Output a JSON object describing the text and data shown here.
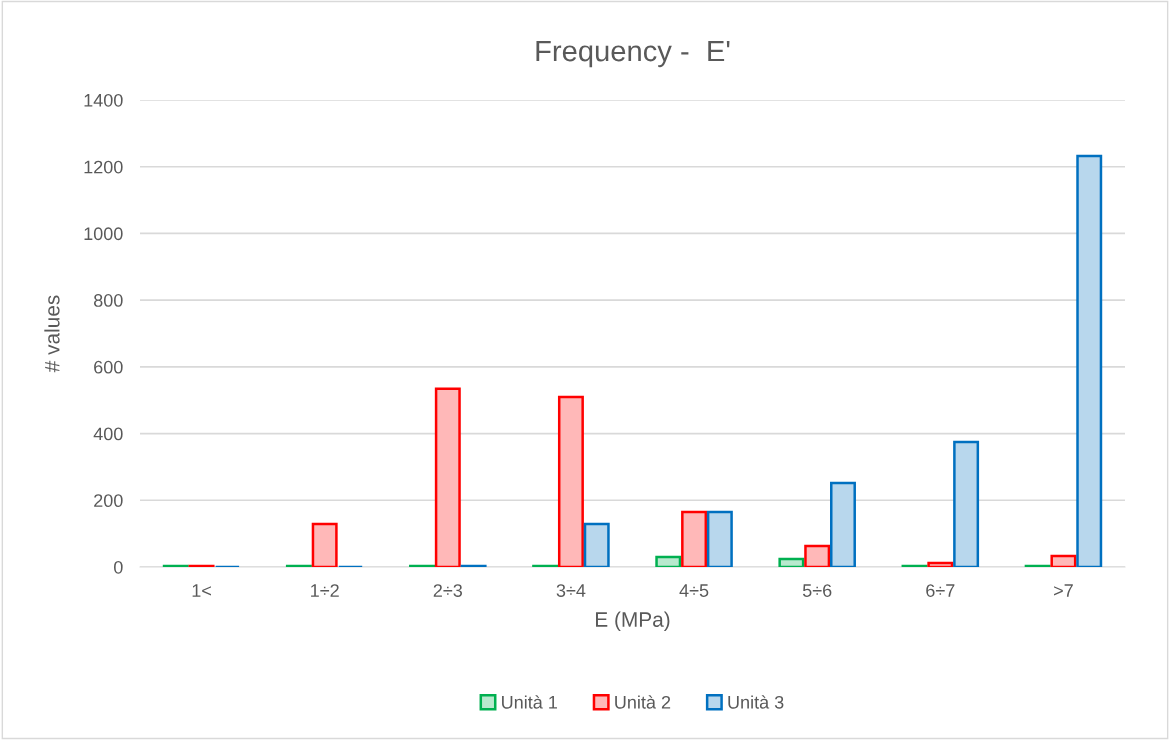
{
  "chart_data": {
    "type": "bar",
    "title": "Frequency -  E'",
    "xlabel": "E (MPa)",
    "ylabel": "# values",
    "categories": [
      "1<",
      "1÷2",
      "2÷3",
      "3÷4",
      "4÷5",
      "5÷6",
      "6÷7",
      ">7"
    ],
    "series": [
      {
        "name": "Unità 1",
        "color": "#00b050",
        "values": [
          3,
          3,
          3,
          3,
          30,
          24,
          3,
          3
        ]
      },
      {
        "name": "Unità 2",
        "color": "#ff0000",
        "values": [
          3,
          129,
          534,
          510,
          165,
          63,
          12,
          33
        ]
      },
      {
        "name": "Unità 3",
        "color": "#0070c0",
        "values": [
          0,
          0,
          3,
          129,
          165,
          252,
          375,
          1232
        ]
      }
    ],
    "ylim": [
      0,
      1400
    ],
    "yticks": [
      0,
      200,
      400,
      600,
      800,
      1000,
      1200,
      1400
    ],
    "grid": "y",
    "legend": "bottom"
  }
}
